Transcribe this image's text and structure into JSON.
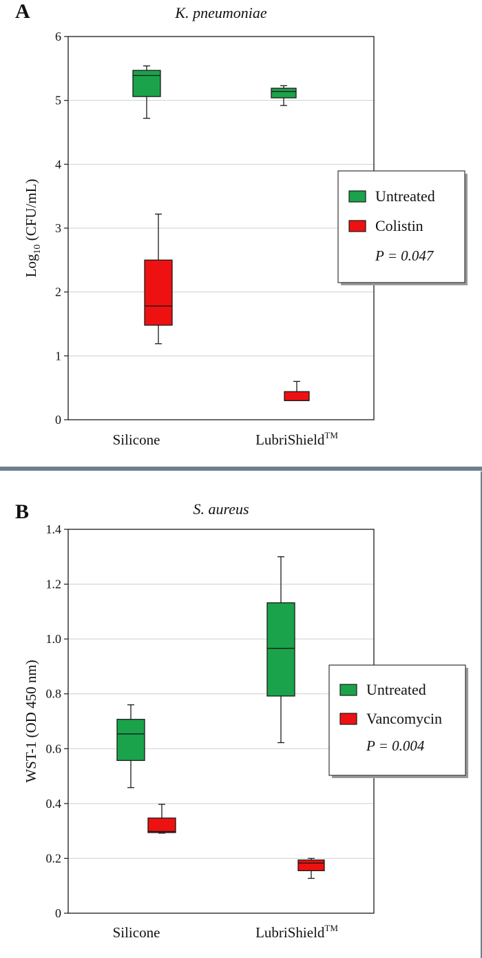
{
  "colors": {
    "untreated_fill": "#1aa34a",
    "treated_fill": "#ee1111",
    "box_stroke": "#1a1a1a",
    "grid": "#cfcfcf",
    "divider": "#6d7f8d"
  },
  "chart_data": [
    {
      "type": "box",
      "panel_label": "A",
      "title": "K. pneumoniae",
      "ylabel_main": "Log",
      "ylabel_sub": "10",
      "ylabel_rest": " (CFU/mL)",
      "ylim": [
        0,
        6
      ],
      "yticks": [
        "0",
        "1",
        "2",
        "3",
        "4",
        "5",
        "6"
      ],
      "grid": true,
      "categories": [
        "Silicone",
        "LubriShield"
      ],
      "category_superscript": [
        "",
        "TM"
      ],
      "series": [
        {
          "name": "Untreated",
          "color_key": "untreated_fill",
          "boxes": [
            {
              "min": 4.72,
              "q1": 5.06,
              "median": 5.39,
              "q3": 5.47,
              "max": 5.54
            },
            {
              "min": 4.92,
              "q1": 5.04,
              "median": 5.14,
              "q3": 5.19,
              "max": 5.23
            }
          ]
        },
        {
          "name": "Colistin",
          "color_key": "treated_fill",
          "boxes": [
            {
              "min": 1.19,
              "q1": 1.48,
              "median": 1.78,
              "q3": 2.5,
              "max": 3.22
            },
            {
              "min": 0.3,
              "q1": 0.3,
              "median": 0.3,
              "q3": 0.44,
              "max": 0.6
            }
          ]
        }
      ],
      "legend": {
        "entries": [
          "Untreated",
          "Colistin"
        ],
        "p_value": "P = 0.047",
        "position": "right"
      }
    },
    {
      "type": "box",
      "panel_label": "B",
      "title": "S. aureus",
      "ylabel_main": "WST-1 (OD 450 nm)",
      "ylabel_sub": "",
      "ylabel_rest": "",
      "ylim": [
        0,
        1.4
      ],
      "yticks": [
        "0",
        "0.2",
        "0.4",
        "0.6",
        "0.8",
        "1.0",
        "1.2",
        "1.4"
      ],
      "grid": true,
      "categories": [
        "Silicone",
        "LubriShield"
      ],
      "category_superscript": [
        "",
        "TM"
      ],
      "series": [
        {
          "name": "Untreated",
          "color_key": "untreated_fill",
          "boxes": [
            {
              "min": 0.458,
              "q1": 0.557,
              "median": 0.654,
              "q3": 0.707,
              "max": 0.76
            },
            {
              "min": 0.622,
              "q1": 0.792,
              "median": 0.966,
              "q3": 1.132,
              "max": 1.3
            }
          ]
        },
        {
          "name": "Vancomycin",
          "color_key": "treated_fill",
          "boxes": [
            {
              "min": 0.292,
              "q1": 0.294,
              "median": 0.298,
              "q3": 0.347,
              "max": 0.397
            },
            {
              "min": 0.127,
              "q1": 0.155,
              "median": 0.183,
              "q3": 0.194,
              "max": 0.2
            }
          ]
        }
      ],
      "legend": {
        "entries": [
          "Untreated",
          "Vancomycin"
        ],
        "p_value": "P = 0.004",
        "position": "right"
      }
    }
  ]
}
